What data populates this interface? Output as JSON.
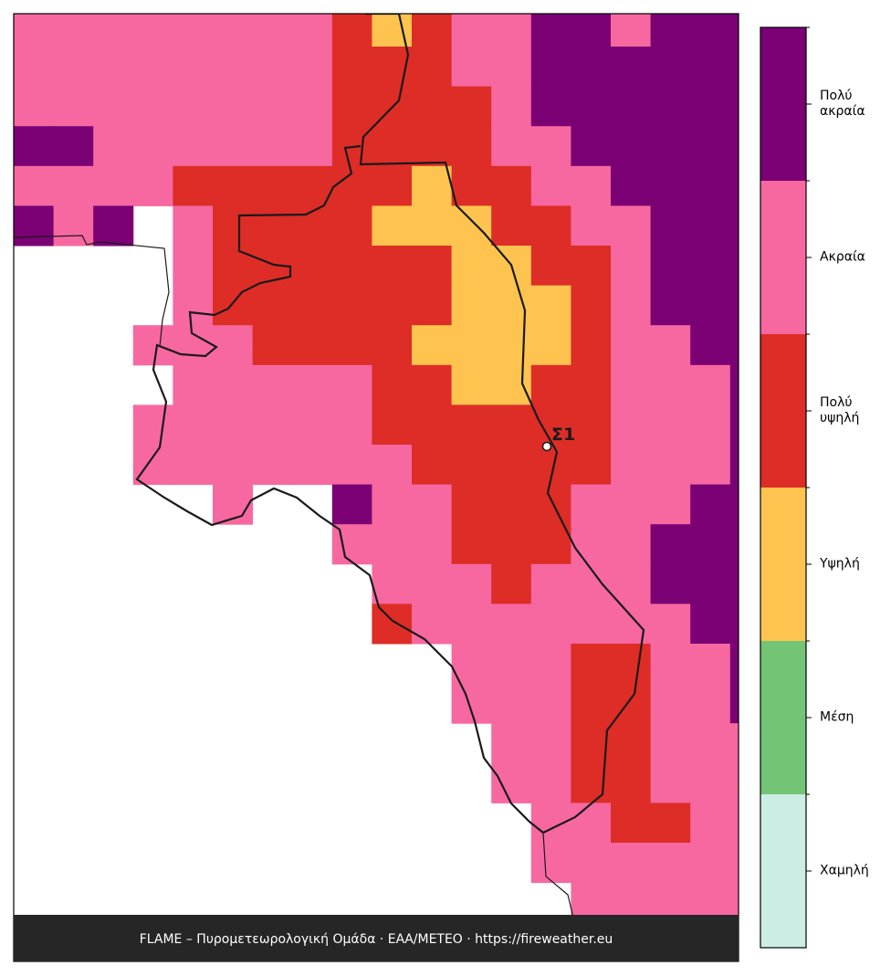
{
  "map": {
    "levels": [
      {
        "name": "Χαμηλή",
        "color": "#ccece6"
      },
      {
        "name": "Μέση",
        "color": "#74c476"
      },
      {
        "name": "Υψηλή",
        "color": "#fec44f"
      },
      {
        "name": "Πολύ υψηλή",
        "color": "#de2d26"
      },
      {
        "name": "Ακραία",
        "color": "#f768a1"
      },
      {
        "name": "Πολύ ακραία",
        "color": "#7b0074"
      }
    ],
    "grid": [
      [
        4,
        4,
        4,
        4,
        4,
        4,
        4,
        4,
        3,
        2,
        3,
        4,
        4,
        5,
        5,
        4,
        5,
        5,
        5
      ],
      [
        4,
        4,
        4,
        4,
        4,
        4,
        4,
        4,
        3,
        3,
        3,
        4,
        4,
        5,
        5,
        5,
        5,
        5,
        5
      ],
      [
        4,
        4,
        4,
        4,
        4,
        4,
        4,
        4,
        3,
        3,
        3,
        3,
        4,
        5,
        5,
        5,
        5,
        5,
        5
      ],
      [
        5,
        5,
        4,
        4,
        4,
        4,
        4,
        4,
        3,
        3,
        3,
        3,
        4,
        4,
        5,
        5,
        5,
        5,
        5
      ],
      [
        4,
        4,
        4,
        4,
        3,
        3,
        3,
        3,
        3,
        3,
        2,
        3,
        3,
        4,
        4,
        5,
        5,
        5,
        5
      ],
      [
        5,
        4,
        5,
        null,
        4,
        3,
        3,
        3,
        3,
        2,
        2,
        2,
        3,
        3,
        4,
        4,
        5,
        5,
        5
      ],
      [
        null,
        null,
        null,
        null,
        4,
        3,
        3,
        3,
        3,
        3,
        3,
        2,
        2,
        3,
        3,
        4,
        5,
        5,
        5
      ],
      [
        null,
        null,
        null,
        null,
        4,
        3,
        3,
        3,
        3,
        3,
        3,
        2,
        2,
        2,
        3,
        4,
        5,
        5,
        5
      ],
      [
        null,
        null,
        null,
        4,
        4,
        4,
        3,
        3,
        3,
        3,
        2,
        2,
        2,
        2,
        3,
        4,
        4,
        5,
        5
      ],
      [
        null,
        null,
        null,
        null,
        4,
        4,
        4,
        4,
        4,
        3,
        3,
        2,
        2,
        3,
        3,
        4,
        4,
        4,
        5
      ],
      [
        null,
        null,
        null,
        4,
        4,
        4,
        4,
        4,
        4,
        3,
        3,
        3,
        3,
        3,
        3,
        4,
        4,
        4,
        5
      ],
      [
        null,
        null,
        null,
        4,
        4,
        4,
        4,
        4,
        4,
        4,
        3,
        3,
        3,
        3,
        3,
        4,
        4,
        4,
        5
      ],
      [
        null,
        null,
        null,
        null,
        null,
        4,
        null,
        null,
        5,
        4,
        4,
        3,
        3,
        3,
        4,
        4,
        4,
        5,
        5
      ],
      [
        null,
        null,
        null,
        null,
        null,
        null,
        null,
        null,
        4,
        4,
        4,
        3,
        3,
        3,
        4,
        4,
        5,
        5,
        5
      ],
      [
        null,
        null,
        null,
        null,
        null,
        null,
        null,
        null,
        null,
        4,
        4,
        4,
        3,
        4,
        4,
        4,
        5,
        5,
        5
      ],
      [
        null,
        null,
        null,
        null,
        null,
        null,
        null,
        null,
        null,
        3,
        4,
        4,
        4,
        4,
        4,
        4,
        4,
        5,
        5
      ],
      [
        null,
        null,
        null,
        null,
        null,
        null,
        null,
        null,
        null,
        null,
        null,
        4,
        4,
        4,
        3,
        3,
        4,
        4,
        5
      ],
      [
        null,
        null,
        null,
        null,
        null,
        null,
        null,
        null,
        null,
        null,
        null,
        4,
        4,
        4,
        3,
        3,
        4,
        4,
        5
      ],
      [
        null,
        null,
        null,
        null,
        null,
        null,
        null,
        null,
        null,
        null,
        null,
        null,
        4,
        4,
        3,
        3,
        4,
        4,
        4
      ],
      [
        null,
        null,
        null,
        null,
        null,
        null,
        null,
        null,
        null,
        null,
        null,
        null,
        4,
        4,
        3,
        3,
        4,
        4,
        4
      ],
      [
        null,
        null,
        null,
        null,
        null,
        null,
        null,
        null,
        null,
        null,
        null,
        null,
        null,
        4,
        4,
        3,
        3,
        4,
        4
      ],
      [
        null,
        null,
        null,
        null,
        null,
        null,
        null,
        null,
        null,
        null,
        null,
        null,
        null,
        4,
        4,
        4,
        4,
        4,
        4
      ],
      [
        null,
        null,
        null,
        null,
        null,
        null,
        null,
        null,
        null,
        null,
        null,
        null,
        null,
        null,
        4,
        4,
        4,
        4,
        4
      ]
    ],
    "station": {
      "label": "Σ1"
    },
    "footer": "FLAME – Πυρομετεωρολογική Ομάδα · ΕΑΑ/METEO · https://fireweather.eu"
  }
}
